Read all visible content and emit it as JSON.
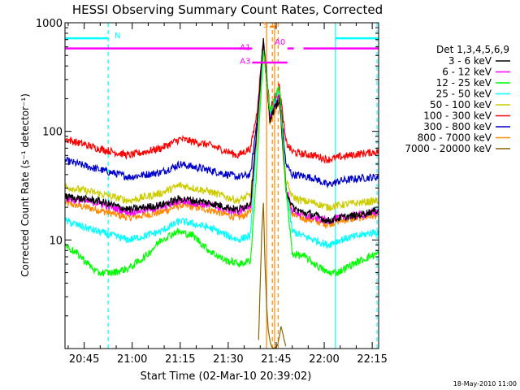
{
  "chart_data": {
    "type": "line",
    "title": "HESSI Observing Summary Count Rates, Corrected",
    "xlabel": "Start Time (02-Mar-10 20:39:02)",
    "ylabel": "Corrected Count Rate (s⁻¹ detector⁻¹)",
    "x_unit": "minutes after 20:39:02",
    "xlim": [
      0,
      98
    ],
    "ylim": [
      1,
      1000
    ],
    "y_scale": "log",
    "y_ticks": [
      {
        "value": 1000,
        "label": "1000"
      },
      {
        "value": 100,
        "label": "100"
      },
      {
        "value": 10,
        "label": "10"
      }
    ],
    "x_ticks": [
      {
        "value": 6,
        "label": "20:45"
      },
      {
        "value": 21,
        "label": "21:00"
      },
      {
        "value": 36,
        "label": "21:15"
      },
      {
        "value": 51,
        "label": "21:30"
      },
      {
        "value": 66,
        "label": "21:45"
      },
      {
        "value": 81,
        "label": "22:00"
      },
      {
        "value": 96,
        "label": "22:15"
      }
    ],
    "legend_title": "Det 1,3,4,5,6,9",
    "legend_position": "right",
    "footer_date": "18-May-2010 11:00",
    "series": [
      {
        "name": "3 - 6 keV",
        "color": "#000000",
        "x": [
          0,
          10,
          20,
          30,
          36,
          45,
          54,
          58,
          60,
          62,
          64,
          67,
          69,
          71,
          74,
          78,
          82,
          86,
          92,
          98
        ],
        "y": [
          25,
          23,
          19,
          21,
          24,
          22,
          19,
          22,
          110,
          700,
          130,
          200,
          30,
          20,
          18,
          17,
          15,
          16,
          17,
          19
        ]
      },
      {
        "name": "6 - 12 keV",
        "color": "#ff00ff",
        "x": [
          0,
          10,
          20,
          30,
          36,
          45,
          54,
          58,
          60,
          62,
          64,
          67,
          69,
          71,
          74,
          78,
          82,
          86,
          92,
          98
        ],
        "y": [
          24,
          22,
          18,
          20,
          23,
          21,
          18,
          21,
          110,
          700,
          130,
          220,
          30,
          19,
          17,
          16,
          15,
          16,
          17,
          18
        ]
      },
      {
        "name": "12 - 25 keV",
        "color": "#00ff00",
        "x": [
          0,
          5,
          10,
          15,
          20,
          25,
          30,
          35,
          40,
          45,
          50,
          55,
          58,
          60,
          62,
          64,
          67,
          69,
          71,
          75,
          78,
          80,
          82,
          85,
          90,
          95,
          98
        ],
        "y": [
          9,
          7,
          5,
          5,
          5.5,
          7,
          10,
          12,
          11,
          8,
          6.5,
          6,
          6.5,
          50,
          560,
          150,
          260,
          30,
          7.5,
          7,
          6,
          5.5,
          5,
          5,
          6,
          7,
          7.5
        ]
      },
      {
        "name": "25 - 50 keV",
        "color": "#00ffff",
        "x": [
          0,
          10,
          20,
          30,
          36,
          45,
          54,
          58,
          60,
          62,
          64,
          67,
          69,
          71,
          74,
          78,
          82,
          86,
          92,
          98
        ],
        "y": [
          15,
          12,
          10,
          12,
          15,
          13,
          10,
          11,
          100,
          650,
          140,
          230,
          32,
          12,
          11,
          10,
          9,
          10,
          11,
          12
        ]
      },
      {
        "name": "50 - 100 keV",
        "color": "#cccc00",
        "x": [
          0,
          10,
          20,
          30,
          36,
          45,
          54,
          58,
          60,
          62,
          64,
          67,
          69,
          71,
          74,
          78,
          82,
          86,
          92,
          98
        ],
        "y": [
          31,
          27,
          23,
          27,
          32,
          28,
          23,
          26,
          100,
          650,
          140,
          230,
          35,
          25,
          23,
          22,
          20,
          21,
          22,
          23
        ]
      },
      {
        "name": "100 - 300 keV",
        "color": "#ff0000",
        "x": [
          0,
          10,
          20,
          30,
          36,
          45,
          54,
          58,
          60,
          62,
          64,
          67,
          69,
          71,
          74,
          78,
          82,
          86,
          92,
          98
        ],
        "y": [
          85,
          70,
          60,
          70,
          85,
          75,
          60,
          70,
          150,
          700,
          160,
          260,
          80,
          65,
          62,
          60,
          55,
          58,
          62,
          65
        ]
      },
      {
        "name": "300 - 800 keV",
        "color": "#0000cc",
        "x": [
          0,
          10,
          20,
          30,
          36,
          45,
          54,
          58,
          60,
          62,
          64,
          67,
          69,
          71,
          74,
          78,
          82,
          86,
          92,
          98
        ],
        "y": [
          54,
          45,
          38,
          42,
          50,
          44,
          38,
          40,
          130,
          700,
          150,
          250,
          50,
          40,
          39,
          37,
          32,
          35,
          37,
          38
        ]
      },
      {
        "name": "800 - 7000 keV",
        "color": "#ff8800",
        "x": [
          0,
          10,
          20,
          30,
          36,
          45,
          54,
          58,
          60,
          62,
          64,
          67,
          69,
          71,
          74,
          78,
          82,
          86,
          92,
          98
        ],
        "y": [
          22,
          19,
          16,
          18,
          21,
          19,
          16,
          18,
          90,
          600,
          120,
          200,
          28,
          17,
          16,
          15,
          14,
          15,
          16,
          17
        ]
      },
      {
        "name": "7000 - 20000 keV",
        "color": "#886600",
        "x": [
          60.5,
          61,
          61.5,
          62,
          62.5,
          63,
          63.5,
          64,
          64.5,
          65,
          65.5,
          66,
          66.5,
          67,
          67.5,
          68,
          68.5,
          69
        ],
        "y": [
          1.2,
          4,
          12,
          22,
          6,
          2.5,
          1.5,
          1.2,
          1.05,
          1.01,
          1.01,
          1.03,
          1.1,
          1.3,
          1.6,
          1.4,
          1.2,
          1.05
        ]
      }
    ],
    "attenuator_bars": [
      {
        "label": "N",
        "color": "#00ffff",
        "y": 720,
        "segments": [
          [
            0,
            13.5
          ],
          [
            84.5,
            98
          ]
        ]
      },
      {
        "label": "A1",
        "color": "#ff00ff",
        "y": 580,
        "segments": [
          [
            0,
            58.5
          ],
          [
            69.5,
            71.5
          ],
          [
            74.5,
            78
          ],
          [
            78,
            98
          ]
        ]
      },
      {
        "label": "A3",
        "color": "#ff00ff",
        "y": 430,
        "segments": [
          [
            58.5,
            69.5
          ]
        ]
      },
      {
        "label": "S",
        "color": "#ff8800",
        "y": 920,
        "segments": [
          [
            64,
            66
          ]
        ]
      },
      {
        "label": "A0",
        "color": "#ff00ff",
        "y": 630,
        "segments": []
      }
    ],
    "vlines": [
      {
        "x": 13.5,
        "color": "#00ffff",
        "dash": true
      },
      {
        "x": 84.5,
        "color": "#00ffff",
        "dash": false
      },
      {
        "x": 97.5,
        "color": "#00ffff",
        "dash": true
      },
      {
        "x": 63,
        "color": "#ff8800",
        "dash": false
      },
      {
        "x": 64.8,
        "color": "#ff8800",
        "dash": true
      },
      {
        "x": 65.5,
        "color": "#ff8800",
        "dash": false
      },
      {
        "x": 66.6,
        "color": "#ff8800",
        "dash": true
      }
    ]
  }
}
